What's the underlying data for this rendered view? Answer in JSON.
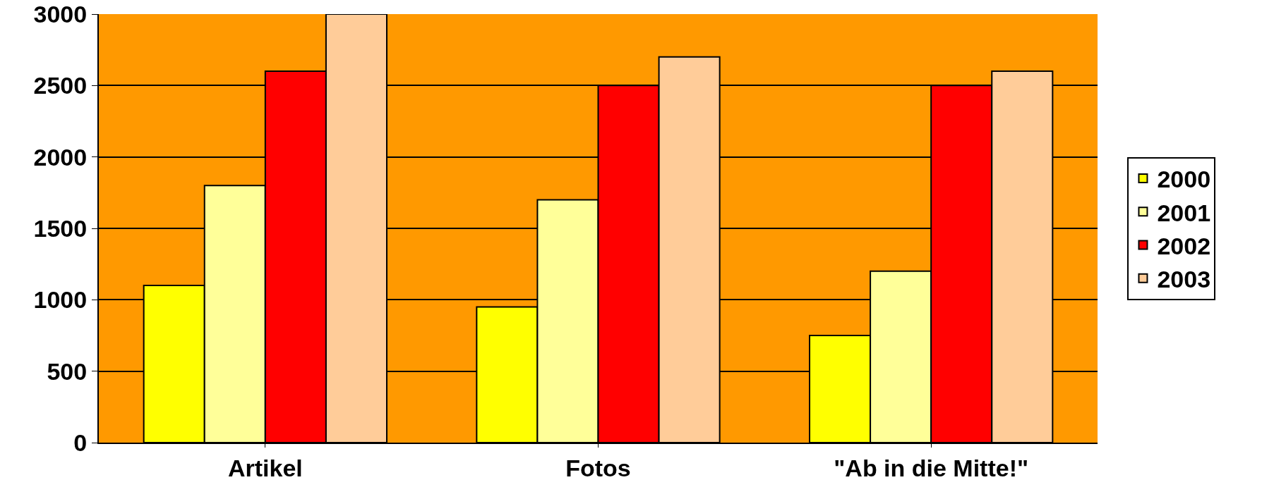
{
  "chart_data": {
    "type": "bar",
    "categories": [
      "Artikel",
      "Fotos",
      "\"Ab in die Mitte!\""
    ],
    "series": [
      {
        "name": "2000",
        "color": "#ffff00",
        "values": [
          1100,
          950,
          750
        ]
      },
      {
        "name": "2001",
        "color": "#ffff99",
        "values": [
          1800,
          1700,
          1200
        ]
      },
      {
        "name": "2002",
        "color": "#ff0000",
        "values": [
          2600,
          2500,
          2500
        ]
      },
      {
        "name": "2003",
        "color": "#ffcc99",
        "values": [
          3000,
          2700,
          2600
        ]
      }
    ],
    "ylim": [
      0,
      3000
    ],
    "yticks": [
      0,
      500,
      1000,
      1500,
      2000,
      2500,
      3000
    ],
    "grid": "y",
    "legend": "right"
  }
}
